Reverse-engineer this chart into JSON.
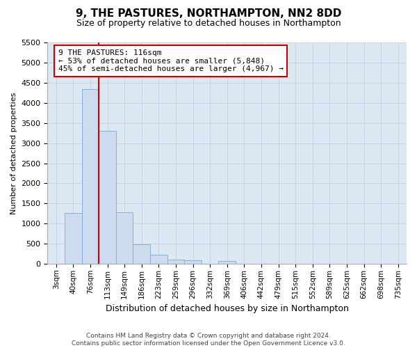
{
  "title": "9, THE PASTURES, NORTHAMPTON, NN2 8DD",
  "subtitle": "Size of property relative to detached houses in Northampton",
  "xlabel": "Distribution of detached houses by size in Northampton",
  "ylabel": "Number of detached properties",
  "footer_line1": "Contains HM Land Registry data © Crown copyright and database right 2024.",
  "footer_line2": "Contains public sector information licensed under the Open Government Licence v3.0.",
  "bar_color": "#ccdcee",
  "bar_edge_color": "#7aaad0",
  "annotation_text": "9 THE PASTURES: 116sqm\n← 53% of detached houses are smaller (5,848)\n45% of semi-detached houses are larger (4,967) →",
  "annotation_box_edgecolor": "#cc0000",
  "redline_x": 2.5,
  "categories": [
    "3sqm",
    "40sqm",
    "76sqm",
    "113sqm",
    "149sqm",
    "186sqm",
    "223sqm",
    "259sqm",
    "296sqm",
    "332sqm",
    "369sqm",
    "406sqm",
    "442sqm",
    "479sqm",
    "515sqm",
    "552sqm",
    "589sqm",
    "625sqm",
    "662sqm",
    "698sqm",
    "735sqm"
  ],
  "values": [
    0,
    1270,
    4350,
    3300,
    1280,
    480,
    230,
    100,
    80,
    0,
    70,
    0,
    0,
    0,
    0,
    0,
    0,
    0,
    0,
    0,
    0
  ],
  "ylim_max": 5500,
  "yticks": [
    0,
    500,
    1000,
    1500,
    2000,
    2500,
    3000,
    3500,
    4000,
    4500,
    5000,
    5500
  ],
  "grid_color": "#c8d4e4",
  "ax_bg_color": "#dce8f4",
  "title_fontsize": 11,
  "subtitle_fontsize": 9,
  "ylabel_fontsize": 8,
  "xlabel_fontsize": 9,
  "tick_fontsize": 8,
  "xtick_fontsize": 7.5,
  "footer_fontsize": 6.5
}
